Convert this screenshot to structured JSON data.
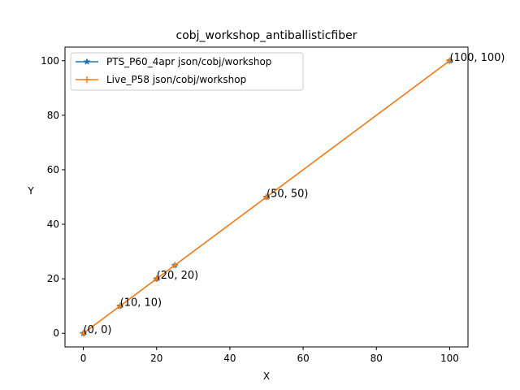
{
  "chart_data": {
    "type": "line",
    "title": "cobj_workshop_antiballisticfiber",
    "xlabel": "X",
    "ylabel": "Y",
    "xlim": [
      -5,
      105
    ],
    "ylim": [
      -5,
      105
    ],
    "xticks": [
      0,
      20,
      40,
      60,
      80,
      100
    ],
    "yticks": [
      0,
      20,
      40,
      60,
      80,
      100
    ],
    "grid": false,
    "legend_position": "top-left",
    "series": [
      {
        "name": "PTS_P60_4apr json/cobj/workshop",
        "color": "#1f77b4",
        "marker": "star",
        "x": [
          0,
          10,
          20,
          25,
          50,
          100
        ],
        "y": [
          0,
          10,
          20,
          25,
          50,
          100
        ]
      },
      {
        "name": "Live_P58 json/cobj/workshop",
        "color": "#ff7f0e",
        "marker": "plus",
        "x": [
          0,
          10,
          20,
          25,
          50,
          100
        ],
        "y": [
          0,
          10,
          20,
          25,
          50,
          100
        ]
      }
    ],
    "annotations": [
      {
        "text": "(0, 0)",
        "x": 0,
        "y": 0
      },
      {
        "text": "(10, 10)",
        "x": 10,
        "y": 10
      },
      {
        "text": "(20, 20)",
        "x": 20,
        "y": 20
      },
      {
        "text": "(50, 50)",
        "x": 50,
        "y": 50
      },
      {
        "text": "(100, 100)",
        "x": 100,
        "y": 100
      }
    ]
  }
}
